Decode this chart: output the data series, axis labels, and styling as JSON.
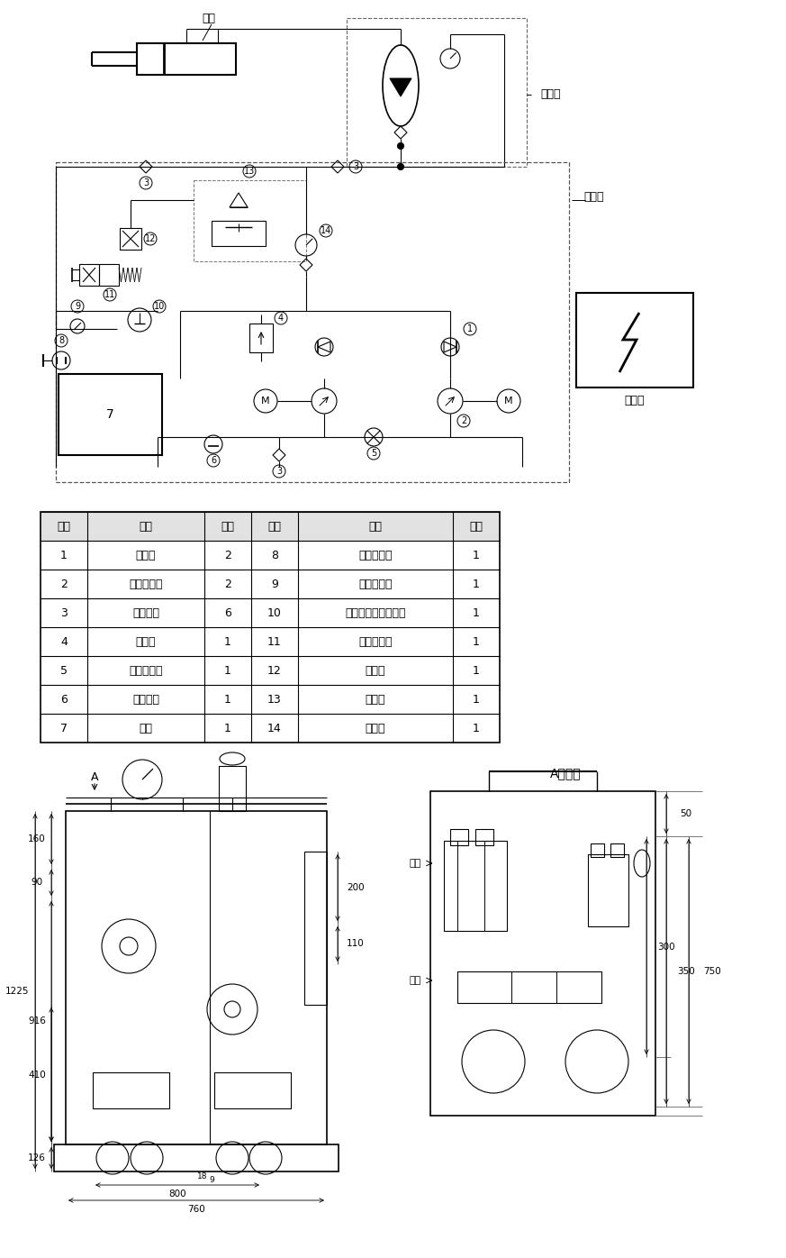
{
  "bg_color": "#ffffff",
  "table_headers": [
    "序号",
    "名称",
    "数量",
    "序号",
    "名称",
    "数量"
  ],
  "table_rows": [
    [
      "1",
      "单向阀",
      "2",
      "8",
      "液位液温计",
      "1"
    ],
    [
      "2",
      "变量柱塞泵",
      "2",
      "9",
      "空气滤清器",
      "1"
    ],
    [
      "3",
      "高压球阀",
      "6",
      "10",
      "电接点双金属温度计",
      "1"
    ],
    [
      "4",
      "溢流阀",
      "1",
      "11",
      "电磁换向阀",
      "1"
    ],
    [
      "5",
      "吸油过滤器",
      "1",
      "12",
      "节流阀",
      "1"
    ],
    [
      "6",
      "电加热器",
      "1",
      "13",
      "过滤器",
      "1"
    ],
    [
      "7",
      "油箱",
      "1",
      "14",
      "压力表",
      "1"
    ]
  ],
  "label_yougang": "油缸",
  "label_xunengqi": "蓄能器",
  "label_yeyazhan": "液压站",
  "label_diankongxiang": "电控箱",
  "label_A_view": "A向视图",
  "label_youkou": "油口",
  "dim_760": "760",
  "dim_800": "800",
  "dim_1225": "1225",
  "dim_916": "916",
  "dim_410": "410",
  "dim_160": "160",
  "dim_90": "90",
  "dim_126": "126",
  "dim_200": "200",
  "dim_110": "110",
  "dim_18": "18",
  "dim_9": "9",
  "dim_50": "50",
  "dim_300": "300",
  "dim_350": "350",
  "dim_750": "750",
  "dim_A": "A"
}
